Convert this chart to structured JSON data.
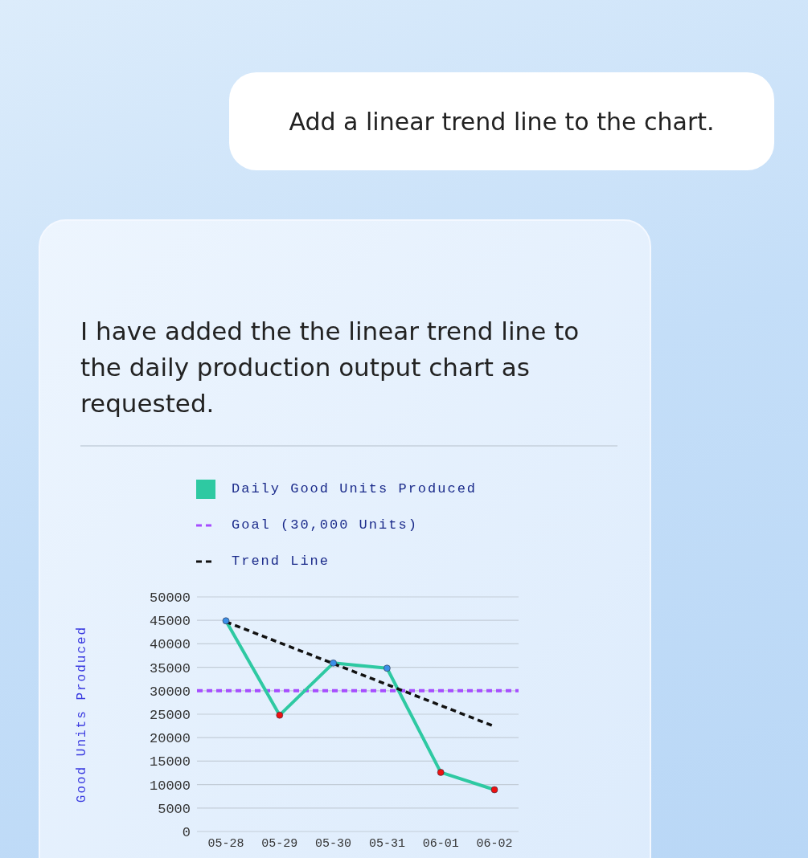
{
  "chart_data": {
    "type": "line",
    "annotations": [
      "Add a linear trend line to the chart.",
      "I have added the the linear trend line to the daily production output chart as requested."
    ],
    "ylabel": "Good Units Produced",
    "categories": [
      "05-28",
      "05-29",
      "05-30",
      "05-31",
      "06-01",
      "06-02"
    ],
    "series": [
      {
        "name": "Daily Good Units Produced",
        "color": "#2ec9a2",
        "values": [
          44900,
          24800,
          35900,
          34800,
          12600,
          8900
        ],
        "colors": [
          "#3a8fe8",
          "#ee1111",
          "#3a8fe8",
          "#3a8fe8",
          "#ee1111",
          "#ee1111"
        ],
        "marker": "circle",
        "line_style": "solid"
      },
      {
        "name": "Trend Line",
        "color": "#111111",
        "values": [
          44700,
          40240,
          35780,
          31320,
          26860,
          22400
        ],
        "marker": "none",
        "line_style": "dashed"
      }
    ],
    "ref_lines": [
      {
        "axis": "y",
        "value": 30000,
        "label": "Goal (30,000 Units)",
        "color": "#a64dff",
        "line_style": "dashed"
      }
    ],
    "ylim": [
      0,
      50000
    ],
    "yticks": [
      0,
      5000,
      10000,
      15000,
      20000,
      25000,
      30000,
      35000,
      40000,
      45000,
      50000
    ],
    "grid": "y",
    "legend": "top"
  }
}
